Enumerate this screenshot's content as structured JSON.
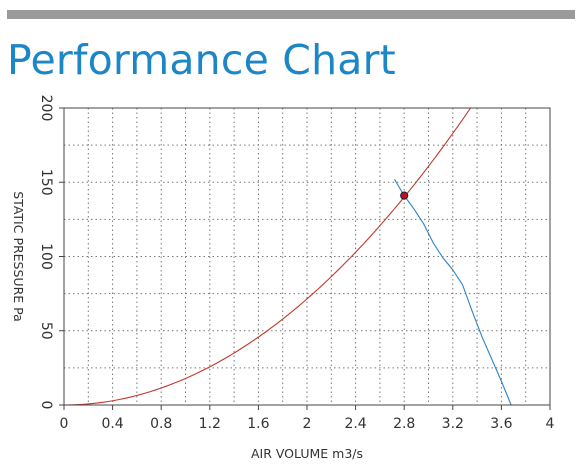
{
  "page": {
    "title": "Performance Chart"
  },
  "chart_data": {
    "type": "line",
    "xlabel": "AIR VOLUME m3/s",
    "ylabel": "STATIC PRESSURE Pa",
    "xlim": [
      0,
      4
    ],
    "ylim": [
      0,
      200
    ],
    "x_ticks": [
      0,
      0.4,
      0.8,
      1.2,
      1.6,
      2,
      2.4,
      2.8,
      3.2,
      3.6,
      4
    ],
    "x_tick_labels": [
      "0",
      "0.4",
      "0.8",
      "1.2",
      "1.6",
      "2",
      "2.4",
      "2.8",
      "3.2",
      "3.6",
      "4"
    ],
    "y_ticks": [
      0,
      50,
      100,
      150,
      200
    ],
    "y_tick_labels": [
      "0",
      "50",
      "100",
      "150",
      "200"
    ],
    "grid": true,
    "series": [
      {
        "color": "#c0392b",
        "x": [
          0,
          0.4,
          0.8,
          1.2,
          1.6,
          2.0,
          2.4,
          2.8,
          3.2,
          3.34
        ],
        "y": [
          0,
          2.9,
          11.4,
          25.7,
          45.7,
          71.4,
          102.9,
          140.0,
          182.9,
          199.2
        ]
      },
      {
        "color": "#2c84c6",
        "x": [
          2.72,
          2.8,
          2.88,
          2.96,
          3.04,
          3.12,
          3.2,
          3.28,
          3.36,
          3.44,
          3.52,
          3.6,
          3.68
        ],
        "y": [
          152,
          141,
          132,
          122,
          109,
          99,
          91,
          81,
          63,
          46,
          31,
          16,
          0
        ]
      }
    ],
    "points": [
      {
        "x": 2.8,
        "y": 141,
        "color": "#c0101a"
      }
    ]
  }
}
